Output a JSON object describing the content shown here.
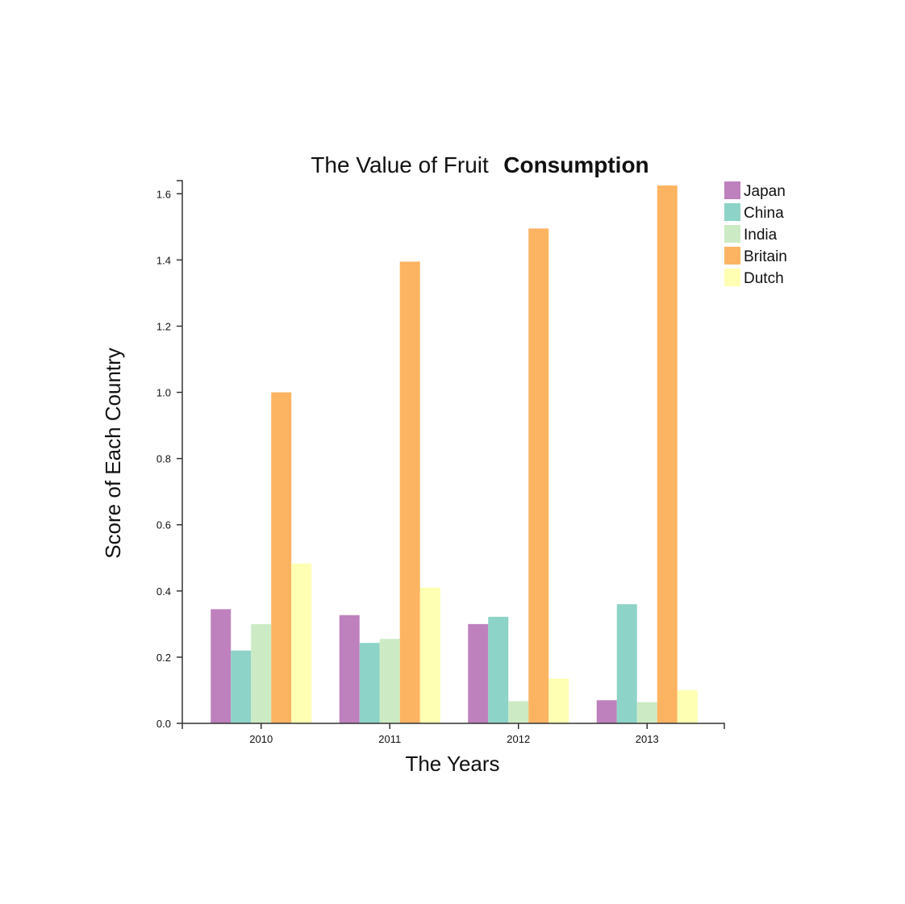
{
  "chart_data": {
    "type": "bar",
    "title": "The Value of Fruit",
    "title_emphasis": "Consumption",
    "xlabel": "The Years",
    "ylabel": "Score of Each Country",
    "categories": [
      "2010",
      "2011",
      "2012",
      "2013"
    ],
    "series": [
      {
        "name": "Japan",
        "color": "#be81bd",
        "values": [
          0.345,
          0.327,
          0.3,
          0.07
        ]
      },
      {
        "name": "China",
        "color": "#8dd3c7",
        "values": [
          0.22,
          0.243,
          0.322,
          0.36
        ]
      },
      {
        "name": "India",
        "color": "#ccebc5",
        "values": [
          0.3,
          0.255,
          0.067,
          0.064
        ]
      },
      {
        "name": "Britain",
        "color": "#fdb462",
        "values": [
          1.0,
          1.395,
          1.495,
          1.625
        ]
      },
      {
        "name": "Dutch",
        "color": "#ffffb3",
        "values": [
          0.483,
          0.41,
          0.135,
          0.1
        ]
      }
    ],
    "ylim": [
      0,
      1.625
    ],
    "yticks": [
      "0.0",
      "0.2",
      "0.4",
      "0.6",
      "0.8",
      "1.0",
      "1.2",
      "1.4",
      "1.6"
    ],
    "grid": false,
    "legend_position": "top-right"
  }
}
